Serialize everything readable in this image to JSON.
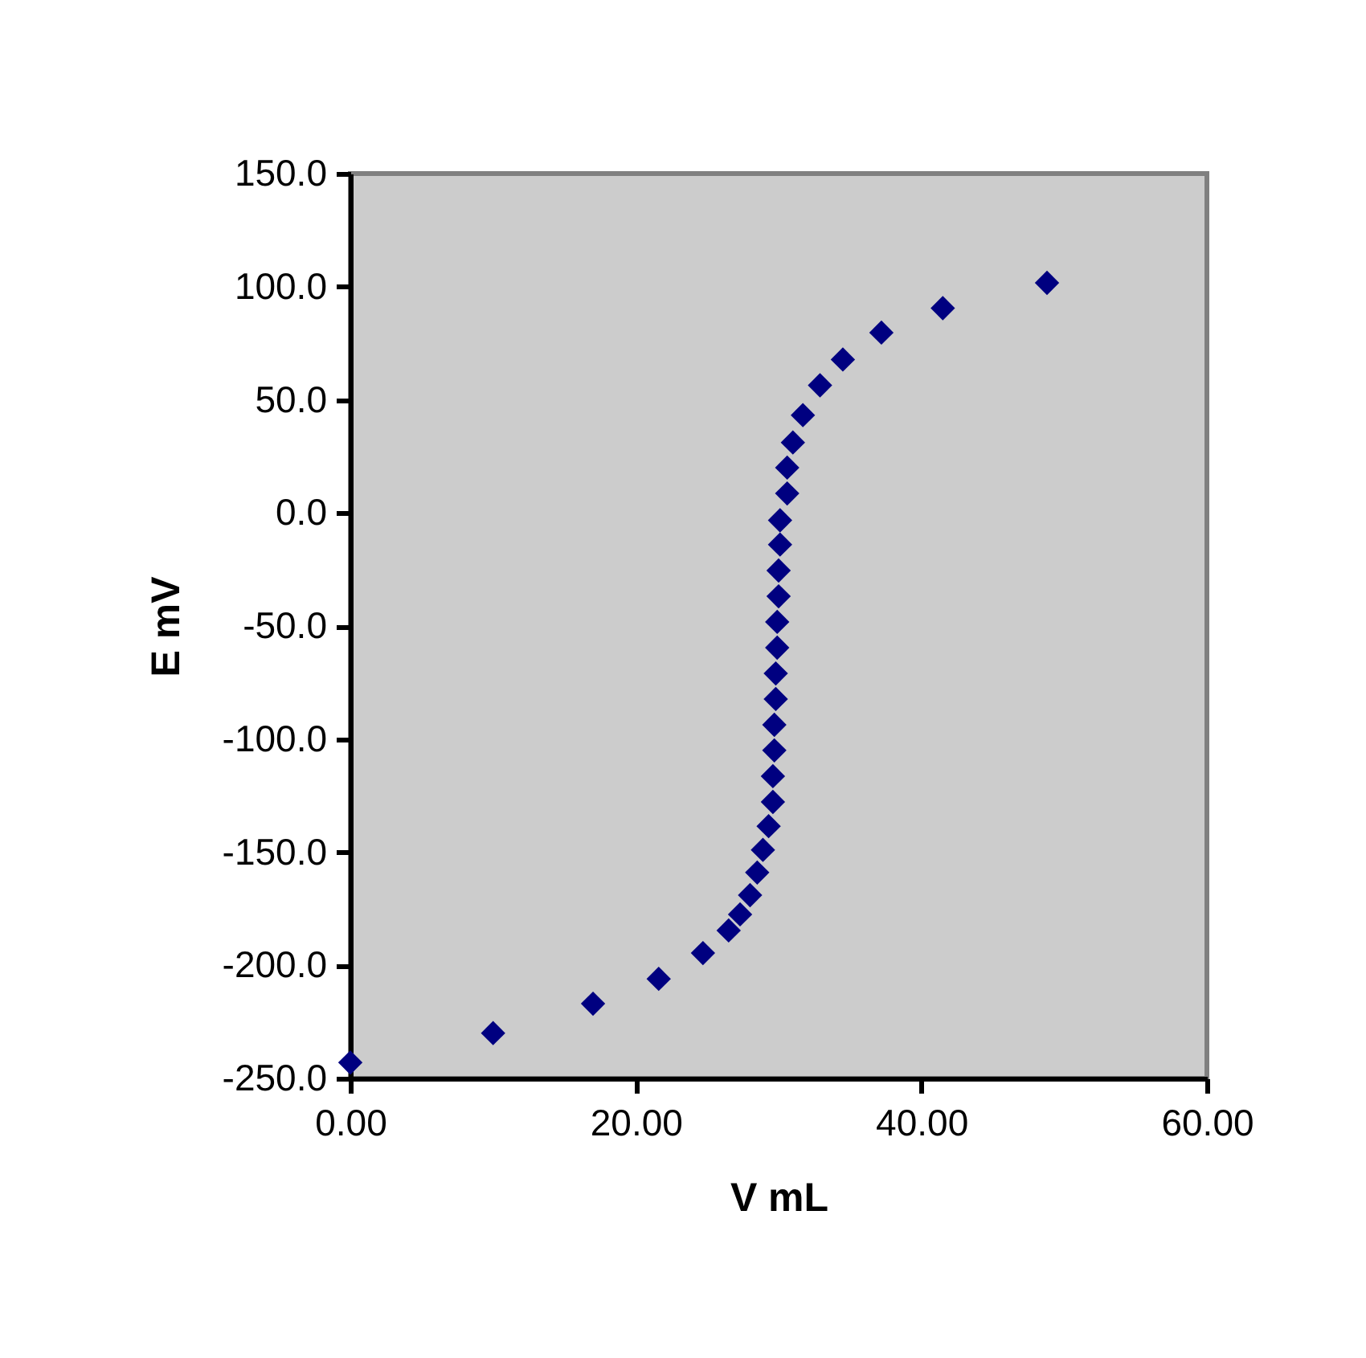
{
  "chart_data": {
    "type": "scatter",
    "xlabel": "V mL",
    "ylabel": "E mV",
    "x": [
      0,
      10.0,
      17.0,
      21.6,
      24.7,
      26.5,
      27.3,
      28.0,
      28.5,
      28.9,
      29.3,
      29.6,
      29.6,
      29.7,
      29.7,
      29.8,
      29.8,
      29.9,
      29.9,
      30.0,
      30.0,
      30.1,
      30.1,
      30.6,
      30.6,
      31.0,
      31.7,
      32.9,
      34.5,
      37.2,
      41.5,
      48.8
    ],
    "series": [
      {
        "color": "#000080",
        "values": [
          -243,
          -230,
          -217,
          -206,
          -194.6,
          -184.6,
          -177.5,
          -169,
          -159,
          -149,
          -138.5,
          -127.8,
          -116.4,
          -105,
          -93.7,
          -82.3,
          -71,
          -59.6,
          -48.2,
          -36.9,
          -25.5,
          -14,
          -3.3,
          8.6,
          20,
          31.1,
          43.2,
          56.4,
          67.8,
          79.7,
          90.5,
          101.7
        ]
      }
    ],
    "marker": "diamond",
    "xlim": [
      0,
      60
    ],
    "ylim": [
      -250,
      150
    ],
    "xticks": [
      {
        "value": 0,
        "label": "0.00"
      },
      {
        "value": 20,
        "label": "20.00"
      },
      {
        "value": 40,
        "label": "40.00"
      },
      {
        "value": 60,
        "label": "60.00"
      }
    ],
    "yticks": [
      {
        "value": -250,
        "label": "-250.0"
      },
      {
        "value": -200,
        "label": "-200.0"
      },
      {
        "value": -150,
        "label": "-150.0"
      },
      {
        "value": -100,
        "label": "-100.0"
      },
      {
        "value": -50,
        "label": "-50.0"
      },
      {
        "value": 0,
        "label": "0.0"
      },
      {
        "value": 50,
        "label": "50.0"
      },
      {
        "value": 100,
        "label": "100.0"
      },
      {
        "value": 150,
        "label": "150.0"
      }
    ],
    "grid": false
  }
}
